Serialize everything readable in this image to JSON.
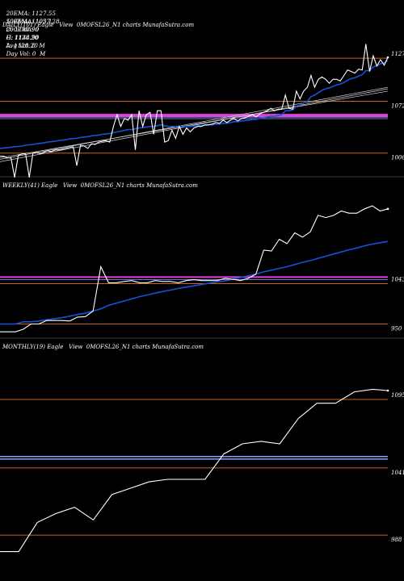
{
  "header": {
    "line1": [
      "20EMA: 1127.55",
      "100EMA: 1057.28",
      "O: 1144.90",
      "H: 1144.90",
      "Avg Vol: 0  M"
    ],
    "line2": [
      "50EMA: 1102.1",
      "200EMA: 0",
      "C: 1128.20",
      "L: 1128.20",
      "Day Vol: 0  M"
    ]
  },
  "colors": {
    "background": "#000000",
    "price": "#ffffff",
    "ema_blue": "#1a4fd6",
    "level_orange": "#c8641e",
    "level_magenta": "#e040e0",
    "level_blue": "#8aa0ff",
    "level_white": "#d8d8d8",
    "panel_divider": "#3a3a3a"
  },
  "chart_data": [
    {
      "name": "DAILY",
      "type": "line",
      "label": "DAILY(101) Eagle   View  0MOFSL26_N1 charts MunafaSutra.com",
      "y_ticks": [
        "1127",
        "1072",
        "1006"
      ],
      "ylim": [
        980,
        1160
      ],
      "orange_levels": [
        1127,
        1072,
        1006
      ],
      "magenta_levels": [
        1055,
        1053
      ],
      "price": [
        1002,
        1002,
        1000,
        1000,
        975,
        1003,
        1005,
        1005,
        975,
        1006,
        1007,
        1005,
        1007,
        1009,
        1008,
        1010,
        1010,
        1011,
        1012,
        1013,
        1014,
        990,
        1016,
        1015,
        1012,
        1018,
        1017,
        1020,
        1021,
        1022,
        1020,
        1040,
        1055,
        1040,
        1050,
        1048,
        1055,
        1010,
        1060,
        1040,
        1055,
        1058,
        1030,
        1060,
        1060,
        1020,
        1022,
        1035,
        1025,
        1040,
        1030,
        1038,
        1033,
        1038,
        1040,
        1040,
        1042,
        1042,
        1043,
        1045,
        1044,
        1048,
        1045,
        1048,
        1050,
        1047,
        1050,
        1051,
        1053,
        1055,
        1052,
        1056,
        1058,
        1060,
        1063,
        1060,
        1062,
        1062,
        1080,
        1063,
        1062,
        1085,
        1075,
        1085,
        1090,
        1105,
        1090,
        1100,
        1103,
        1100,
        1095,
        1100,
        1100,
        1098,
        1105,
        1112,
        1110,
        1108,
        1113,
        1112,
        1145,
        1110,
        1130,
        1117,
        1125,
        1118,
        1128
      ],
      "ema_blue": [
        1012,
        1012.5,
        1013,
        1013.5,
        1014,
        1014.5,
        1015,
        1016,
        1016.5,
        1017,
        1018,
        1018.5,
        1019,
        1020,
        1020.5,
        1021,
        1022,
        1022.5,
        1023,
        1024,
        1024.5,
        1025,
        1026,
        1026.5,
        1027,
        1028,
        1028.5,
        1029,
        1030,
        1030.5,
        1031,
        1032,
        1033,
        1034,
        1035,
        1036,
        1036,
        1037,
        1038,
        1038.5,
        1039,
        1040,
        1040,
        1041,
        1042,
        1041,
        1040,
        1040,
        1040,
        1040.5,
        1040,
        1040,
        1040,
        1040.5,
        1041,
        1041,
        1041.5,
        1042,
        1042,
        1043,
        1043,
        1044,
        1044,
        1045,
        1046,
        1046,
        1047,
        1047.5,
        1048,
        1049,
        1049,
        1050,
        1051,
        1052,
        1053,
        1053,
        1054,
        1055,
        1060,
        1060,
        1061,
        1066,
        1067,
        1070,
        1072,
        1078,
        1080,
        1083,
        1086,
        1088,
        1089,
        1091,
        1093,
        1094,
        1096,
        1099,
        1101,
        1102,
        1104,
        1106,
        1111,
        1111,
        1116,
        1117,
        1120,
        1121,
        1124
      ]
    },
    {
      "name": "WEEKLY",
      "type": "line",
      "label": "WEEKLY(41) Eagle   View  0MOFSL26_N1 charts MunafaSutra.com",
      "y_ticks": [
        "1043",
        "950"
      ],
      "ylim": [
        925,
        1250
      ],
      "orange_levels": [
        1043,
        950
      ],
      "magenta_levels": [
        1058
      ],
      "price": [
        932,
        932,
        932,
        938,
        950,
        950,
        958,
        958,
        958,
        957,
        966,
        967,
        980,
        1082,
        1045,
        1045,
        1048,
        1050,
        1045,
        1045,
        1050,
        1048,
        1048,
        1045,
        1050,
        1052,
        1050,
        1050,
        1050,
        1055,
        1053,
        1050,
        1055,
        1065,
        1120,
        1118,
        1145,
        1135,
        1160,
        1150,
        1162,
        1200,
        1195,
        1200,
        1210,
        1205,
        1205,
        1215,
        1222,
        1210,
        1215
      ],
      "ema_blue": [
        950,
        950,
        950,
        955,
        955,
        957,
        960,
        962,
        965,
        968,
        972,
        975,
        980,
        985,
        993,
        998,
        1003,
        1008,
        1013,
        1017,
        1021,
        1025,
        1028,
        1032,
        1035,
        1038,
        1041,
        1044,
        1047,
        1049,
        1053,
        1057,
        1061,
        1065,
        1070,
        1074,
        1078,
        1082,
        1087,
        1092,
        1096,
        1101,
        1106,
        1111,
        1116,
        1121,
        1125,
        1130,
        1134,
        1137,
        1140
      ]
    },
    {
      "name": "MONTHLY",
      "type": "line",
      "label": "MONTHLY(19) Eagle   View  0MOFSL26_N1 charts MunafaSutra.com",
      "y_ticks": [
        "1095",
        "1041",
        "988"
      ],
      "ylim": [
        955,
        1130
      ],
      "orange_levels": [
        1095,
        1041,
        988
      ],
      "blue_levels": [
        1050,
        1048
      ],
      "price": [
        975,
        975,
        998,
        1005,
        1010,
        1000,
        1020,
        1025,
        1030,
        1032,
        1032,
        1052,
        1060,
        1062,
        1060,
        1080,
        1092,
        1092,
        1101,
        1103,
        1102
      ],
      "price_x": [
        0,
        25,
        50,
        75,
        100,
        125,
        150,
        175,
        200,
        225,
        275,
        300,
        325,
        350,
        375,
        400,
        425,
        450,
        475,
        500,
        520
      ]
    }
  ]
}
